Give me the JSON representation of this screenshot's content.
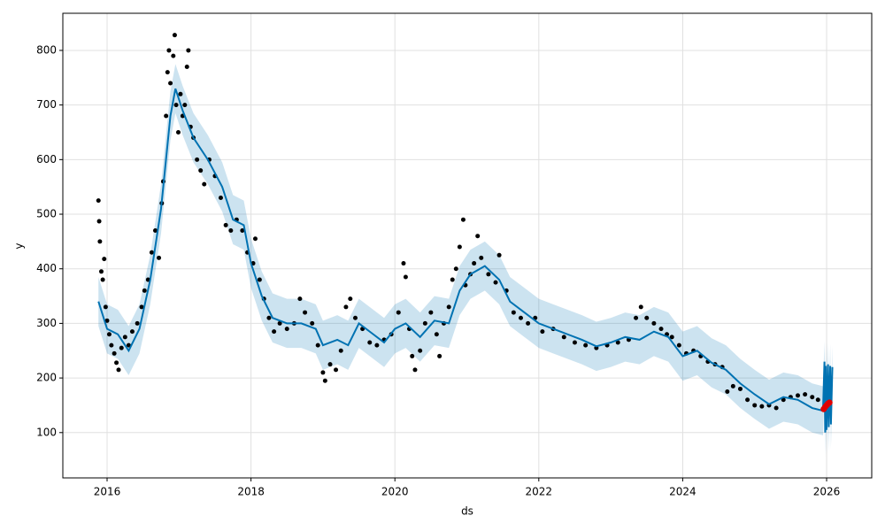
{
  "chart_data": {
    "type": "line",
    "x_label": "ds",
    "y_label": "y",
    "xlim": [
      2015.385,
      2026.627
    ],
    "ylim": [
      17,
      868
    ],
    "xticks": [
      2016,
      2018,
      2020,
      2022,
      2024,
      2026
    ],
    "yticks": [
      100,
      200,
      300,
      400,
      500,
      600,
      700,
      800
    ],
    "grid": true,
    "observed": {
      "color": "#000000",
      "x": [
        2015.88,
        2015.89,
        2015.9,
        2015.92,
        2015.94,
        2015.96,
        2015.98,
        2016.0,
        2016.03,
        2016.06,
        2016.1,
        2016.13,
        2016.16,
        2016.2,
        2016.25,
        2016.3,
        2016.35,
        2016.42,
        2016.48,
        2016.52,
        2016.57,
        2016.62,
        2016.67,
        2016.72,
        2016.76,
        2016.78,
        2016.82,
        2016.84,
        2016.86,
        2016.88,
        2016.92,
        2016.94,
        2016.96,
        2016.99,
        2017.02,
        2017.05,
        2017.08,
        2017.11,
        2017.13,
        2017.16,
        2017.2,
        2017.25,
        2017.3,
        2017.35,
        2017.42,
        2017.5,
        2017.58,
        2017.65,
        2017.72,
        2017.8,
        2017.88,
        2017.95,
        2018.03,
        2018.06,
        2018.12,
        2018.18,
        2018.25,
        2018.32,
        2018.4,
        2018.5,
        2018.6,
        2018.68,
        2018.75,
        2018.85,
        2018.93,
        2019.0,
        2019.03,
        2019.1,
        2019.18,
        2019.25,
        2019.32,
        2019.38,
        2019.45,
        2019.55,
        2019.65,
        2019.75,
        2019.85,
        2019.95,
        2020.05,
        2020.12,
        2020.15,
        2020.2,
        2020.24,
        2020.28,
        2020.35,
        2020.42,
        2020.5,
        2020.58,
        2020.62,
        2020.68,
        2020.75,
        2020.8,
        2020.85,
        2020.9,
        2020.95,
        2020.98,
        2021.05,
        2021.1,
        2021.15,
        2021.2,
        2021.3,
        2021.4,
        2021.45,
        2021.55,
        2021.65,
        2021.75,
        2021.85,
        2021.95,
        2022.05,
        2022.2,
        2022.35,
        2022.5,
        2022.65,
        2022.8,
        2022.95,
        2023.1,
        2023.25,
        2023.35,
        2023.42,
        2023.5,
        2023.6,
        2023.7,
        2023.78,
        2023.85,
        2023.95,
        2024.05,
        2024.15,
        2024.25,
        2024.35,
        2024.45,
        2024.55,
        2024.62,
        2024.7,
        2024.8,
        2024.9,
        2025.0,
        2025.1,
        2025.2,
        2025.3,
        2025.4,
        2025.5,
        2025.6,
        2025.7,
        2025.8,
        2025.88
      ],
      "values": [
        525,
        487,
        450,
        395,
        380,
        418,
        330,
        305,
        280,
        260,
        245,
        228,
        215,
        255,
        275,
        260,
        285,
        300,
        330,
        360,
        380,
        430,
        470,
        420,
        520,
        560,
        680,
        760,
        800,
        740,
        790,
        828,
        700,
        650,
        720,
        680,
        700,
        770,
        800,
        660,
        640,
        600,
        580,
        555,
        600,
        570,
        530,
        480,
        470,
        490,
        470,
        430,
        410,
        455,
        380,
        345,
        310,
        285,
        300,
        290,
        300,
        345,
        320,
        300,
        260,
        210,
        195,
        225,
        215,
        250,
        330,
        345,
        310,
        290,
        265,
        260,
        270,
        280,
        320,
        410,
        385,
        290,
        240,
        215,
        250,
        300,
        320,
        280,
        240,
        300,
        330,
        380,
        400,
        440,
        490,
        370,
        390,
        410,
        460,
        420,
        390,
        375,
        425,
        360,
        320,
        310,
        300,
        310,
        285,
        290,
        275,
        265,
        260,
        255,
        260,
        265,
        270,
        310,
        330,
        310,
        300,
        290,
        280,
        275,
        260,
        245,
        250,
        240,
        230,
        225,
        220,
        175,
        185,
        180,
        160,
        150,
        148,
        150,
        145,
        160,
        165,
        168,
        170,
        165,
        160
      ]
    },
    "forecast": {
      "color": "#0072B2",
      "band_color": "#0072B2",
      "x": [
        2015.88,
        2016.0,
        2016.15,
        2016.3,
        2016.45,
        2016.6,
        2016.75,
        2016.88,
        2016.95,
        2017.05,
        2017.2,
        2017.4,
        2017.6,
        2017.75,
        2017.9,
        2018.0,
        2018.15,
        2018.3,
        2018.5,
        2018.7,
        2018.9,
        2019.0,
        2019.2,
        2019.35,
        2019.5,
        2019.7,
        2019.85,
        2020.0,
        2020.15,
        2020.35,
        2020.55,
        2020.75,
        2020.9,
        2021.05,
        2021.25,
        2021.45,
        2021.6,
        2021.8,
        2022.0,
        2022.2,
        2022.4,
        2022.6,
        2022.8,
        2023.0,
        2023.2,
        2023.4,
        2023.6,
        2023.8,
        2024.0,
        2024.2,
        2024.4,
        2024.6,
        2024.8,
        2025.0,
        2025.2,
        2025.4,
        2025.6,
        2025.8,
        2025.95,
        2025.97,
        2025.98,
        2025.99,
        2026.0,
        2026.02,
        2026.03,
        2026.05,
        2026.06,
        2026.08
      ],
      "values": [
        340,
        290,
        280,
        250,
        290,
        380,
        510,
        680,
        730,
        690,
        640,
        600,
        550,
        490,
        480,
        410,
        350,
        310,
        300,
        300,
        290,
        260,
        270,
        260,
        300,
        280,
        265,
        290,
        300,
        275,
        305,
        300,
        360,
        390,
        405,
        380,
        340,
        320,
        300,
        290,
        280,
        270,
        258,
        265,
        275,
        270,
        285,
        275,
        240,
        250,
        228,
        215,
        190,
        170,
        152,
        165,
        160,
        145,
        140,
        230,
        100,
        222,
        105,
        225,
        110,
        222,
        115,
        220
      ],
      "lower": [
        295,
        245,
        235,
        205,
        245,
        335,
        465,
        635,
        685,
        645,
        595,
        555,
        505,
        445,
        435,
        365,
        305,
        265,
        255,
        255,
        245,
        215,
        225,
        215,
        255,
        235,
        220,
        245,
        255,
        230,
        260,
        255,
        315,
        345,
        360,
        335,
        295,
        275,
        255,
        245,
        235,
        225,
        213,
        220,
        230,
        225,
        240,
        230,
        195,
        205,
        183,
        170,
        145,
        125,
        107,
        120,
        115,
        100,
        95,
        185,
        55,
        180,
        60,
        180,
        65,
        178,
        70,
        176
      ],
      "upper": [
        385,
        335,
        325,
        295,
        335,
        425,
        555,
        725,
        775,
        735,
        685,
        645,
        595,
        535,
        525,
        455,
        395,
        355,
        345,
        345,
        335,
        305,
        315,
        305,
        345,
        325,
        310,
        335,
        345,
        320,
        350,
        345,
        405,
        435,
        450,
        425,
        385,
        365,
        345,
        335,
        325,
        315,
        303,
        310,
        320,
        315,
        330,
        320,
        285,
        295,
        273,
        260,
        235,
        215,
        197,
        210,
        205,
        190,
        185,
        268,
        145,
        265,
        150,
        265,
        155,
        262,
        160,
        260
      ]
    },
    "recent": {
      "color": "#e00000",
      "x": [
        2025.96,
        2025.98,
        2026.0,
        2026.02,
        2026.04
      ],
      "values": [
        143,
        147,
        150,
        153,
        155
      ]
    }
  }
}
